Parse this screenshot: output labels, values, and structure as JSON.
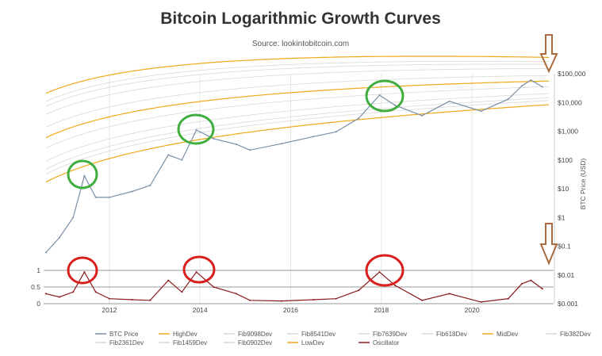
{
  "chart_data": {
    "type": "line",
    "title": "Bitcoin Logarithmic Growth Curves",
    "subtitle": "Source: lookintobitcoin.com",
    "x_ticks": [
      "2012",
      "2014",
      "2016",
      "2018",
      "2020"
    ],
    "price_axis": {
      "label": "BTC Price (USD)",
      "scale": "log",
      "ticks": [
        "$100,000",
        "$10,000",
        "$1,000",
        "$100",
        "$10",
        "$1",
        "$0.1",
        "$0.01",
        "$0.001"
      ],
      "tick_values": [
        100000,
        10000,
        1000,
        100,
        10,
        1,
        0.1,
        0.01,
        0.001
      ]
    },
    "oscillator_axis": {
      "ticks": [
        "1",
        "0.5",
        "0"
      ],
      "tick_values": [
        1,
        0.5,
        0
      ]
    },
    "series": [
      {
        "name": "BTC Price",
        "color": "#7a8fa6",
        "x": [
          2010.6,
          2010.9,
          2011.2,
          2011.45,
          2011.7,
          2012.0,
          2012.5,
          2012.9,
          2013.3,
          2013.6,
          2013.92,
          2014.3,
          2014.8,
          2015.1,
          2015.8,
          2016.5,
          2017.0,
          2017.5,
          2017.96,
          2018.3,
          2018.9,
          2019.5,
          2020.2,
          2020.8,
          2021.1,
          2021.3,
          2021.55
        ],
        "values": [
          0.06,
          0.2,
          1,
          28,
          5,
          5,
          8,
          13,
          150,
          100,
          1100,
          550,
          350,
          220,
          370,
          650,
          950,
          2800,
          18000,
          8000,
          3500,
          11000,
          5000,
          13000,
          38000,
          60000,
          35000
        ]
      },
      {
        "name": "HighDev",
        "color": "#f0a818"
      },
      {
        "name": "Fib9098Dev",
        "color": "#d8d8d8"
      },
      {
        "name": "Fib8541Dev",
        "color": "#d8d8d8"
      },
      {
        "name": "Fib7639Dev",
        "color": "#d8d8d8"
      },
      {
        "name": "Fib618Dev",
        "color": "#d8d8d8"
      },
      {
        "name": "MidDev",
        "color": "#f0a818"
      },
      {
        "name": "Fib382Dev",
        "color": "#d8d8d8"
      },
      {
        "name": "Fib2361Dev",
        "color": "#d8d8d8"
      },
      {
        "name": "Fib1459Dev",
        "color": "#d8d8d8"
      },
      {
        "name": "Fib0902Dev",
        "color": "#d8d8d8"
      },
      {
        "name": "LowDev",
        "color": "#f0a818"
      },
      {
        "name": "Oscillator",
        "color": "#8a1a1a",
        "x": [
          2010.6,
          2010.9,
          2011.2,
          2011.45,
          2011.7,
          2012.0,
          2012.5,
          2012.9,
          2013.3,
          2013.6,
          2013.92,
          2014.3,
          2014.8,
          2015.1,
          2015.8,
          2016.5,
          2017.0,
          2017.5,
          2017.96,
          2018.3,
          2018.9,
          2019.5,
          2020.2,
          2020.8,
          2021.1,
          2021.3,
          2021.55
        ],
        "values": [
          0.3,
          0.2,
          0.35,
          0.95,
          0.35,
          0.15,
          0.12,
          0.1,
          0.7,
          0.35,
          0.95,
          0.5,
          0.3,
          0.1,
          0.08,
          0.12,
          0.15,
          0.4,
          0.95,
          0.55,
          0.1,
          0.3,
          0.05,
          0.15,
          0.6,
          0.7,
          0.45
        ]
      }
    ],
    "legend_placement": "bottom",
    "grid": true,
    "annotations": {
      "green_circles": 3,
      "red_circles": 3,
      "down_arrows": 2
    }
  }
}
